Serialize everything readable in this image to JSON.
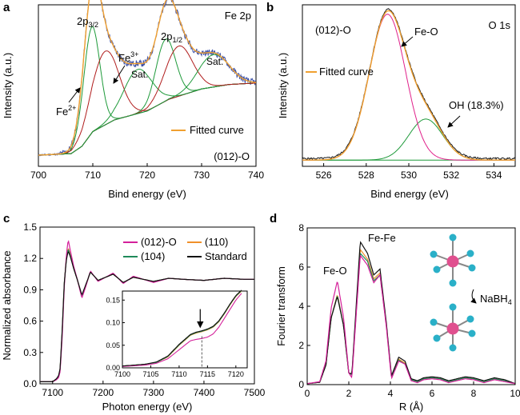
{
  "figure": {
    "panels": [
      "a",
      "b",
      "c",
      "d"
    ]
  },
  "colors": {
    "raw": "#1b1b1b",
    "noise": "#3a4fa8",
    "fitted": "#f0a030",
    "fe2": "#1e9a3a",
    "fe3": "#b01c1c",
    "sat": "#1e9a3a",
    "background": "#1e2a9e",
    "feo_peak": "#e0208a",
    "oh_peak": "#1e9a3a",
    "c_012o": "#d4209a",
    "c_110": "#f0902a",
    "c_104": "#1f8a5a",
    "c_std": "#111111",
    "atom_center": "#e0508f",
    "atom_ligand": "#2ab0c8"
  },
  "chart_data": [
    {
      "panel": "a",
      "type": "line",
      "title": "Fe 2p",
      "xlabel": "Bind energy (eV)",
      "ylabel": "Intensity (a.u.)",
      "xlim": [
        700,
        740
      ],
      "xticks": [
        "700",
        "710",
        "720",
        "730",
        "740"
      ],
      "sample": "(012)-O",
      "legend": [
        "Fitted curve"
      ],
      "annotations": {
        "p32_main": "2p",
        "p32_sub": "3/2",
        "p12_main": "2p",
        "p12_sub": "1/2",
        "fe3_main": "Fe",
        "fe3_sup": "3+",
        "fe2_main": "Fe",
        "fe2_sup": "2+",
        "sat1": "Sat.",
        "sat2": "Sat."
      },
      "peaks": [
        {
          "name": "Fe2+ 2p3/2",
          "center": 709.8,
          "height": 0.72,
          "width": 1.5
        },
        {
          "name": "Fe3+ 2p3/2",
          "center": 712.3,
          "height": 0.5,
          "width": 2.5
        },
        {
          "name": "Sat. 2p3/2",
          "center": 718.3,
          "height": 0.3,
          "width": 2.6
        },
        {
          "name": "Fe2+ 2p1/2",
          "center": 723.4,
          "height": 0.42,
          "width": 1.8
        },
        {
          "name": "Fe3+ 2p1/2",
          "center": 725.8,
          "height": 0.34,
          "width": 2.5
        },
        {
          "name": "Sat. 2p1/2",
          "center": 732.2,
          "height": 0.22,
          "width": 2.8
        }
      ],
      "background_curve": {
        "x": [
          700,
          706,
          708,
          710,
          714,
          720,
          724,
          730,
          735,
          740
        ],
        "y": [
          0,
          0.01,
          0.06,
          0.16,
          0.24,
          0.3,
          0.38,
          0.45,
          0.48,
          0.49
        ]
      }
    },
    {
      "panel": "b",
      "type": "line",
      "title": "O 1s",
      "xlabel": "Bind energy (eV)",
      "ylabel": "Intensity (a.u.)",
      "xlim": [
        525,
        535
      ],
      "xticks": [
        "526",
        "528",
        "530",
        "532",
        "534"
      ],
      "sample": "(012)-O",
      "legend": [
        "Fitted curve"
      ],
      "annotations": {
        "feo": "Fe-O",
        "oh": "OH (18.3%)"
      },
      "peaks": [
        {
          "name": "Fe-O",
          "center": 529.0,
          "height": 0.96,
          "width": 0.85
        },
        {
          "name": "OH",
          "center": 530.8,
          "height": 0.27,
          "width": 0.8
        }
      ],
      "background": 0.02
    },
    {
      "panel": "c",
      "type": "line",
      "xlabel": "Photon energy (eV)",
      "ylabel": "Normalized absorbance",
      "xlim": [
        7075,
        7500
      ],
      "ylim": [
        0,
        1.5
      ],
      "xticks": [
        "7100",
        "7200",
        "7300",
        "7400",
        "7500"
      ],
      "yticks": [
        "0.0",
        "0.3",
        "0.6",
        "0.9",
        "1.2",
        "1.5"
      ],
      "series": [
        {
          "name": "(012)-O",
          "x": [
            7075,
            7100,
            7108,
            7112,
            7115,
            7119,
            7123,
            7127,
            7131,
            7135,
            7142,
            7150,
            7158,
            7165,
            7175,
            7190,
            7205,
            7220,
            7240,
            7260,
            7280,
            7300,
            7330,
            7360,
            7400,
            7440,
            7480,
            7500
          ],
          "y": [
            0.02,
            0.02,
            0.04,
            0.06,
            0.12,
            0.45,
            0.92,
            1.22,
            1.38,
            1.28,
            1.12,
            0.98,
            0.82,
            0.92,
            1.08,
            0.98,
            1.02,
            1.06,
            0.96,
            1.03,
            1.0,
            0.97,
            1.01,
            1.0,
            0.99,
            1.01,
            1.0,
            1.0
          ]
        },
        {
          "name": "(110)",
          "x": [
            7075,
            7100,
            7108,
            7112,
            7115,
            7119,
            7123,
            7127,
            7131,
            7135,
            7142,
            7150,
            7158,
            7165,
            7175,
            7190,
            7205,
            7220,
            7240,
            7260,
            7280,
            7300,
            7330,
            7360,
            7400,
            7440,
            7480,
            7500
          ],
          "y": [
            0.02,
            0.02,
            0.05,
            0.07,
            0.14,
            0.5,
            0.95,
            1.2,
            1.3,
            1.24,
            1.1,
            0.98,
            0.84,
            0.93,
            1.07,
            0.99,
            1.02,
            1.05,
            0.97,
            1.02,
            1.0,
            0.98,
            1.01,
            1.0,
            0.99,
            1.01,
            1.0,
            1.0
          ]
        },
        {
          "name": "(104)",
          "x": [
            7075,
            7100,
            7108,
            7112,
            7115,
            7119,
            7123,
            7127,
            7131,
            7135,
            7142,
            7150,
            7158,
            7165,
            7175,
            7190,
            7205,
            7220,
            7240,
            7260,
            7280,
            7300,
            7330,
            7360,
            7400,
            7440,
            7480,
            7500
          ],
          "y": [
            0.02,
            0.02,
            0.05,
            0.07,
            0.14,
            0.5,
            0.95,
            1.19,
            1.29,
            1.23,
            1.1,
            0.98,
            0.84,
            0.93,
            1.07,
            0.99,
            1.02,
            1.05,
            0.97,
            1.02,
            1.0,
            0.98,
            1.01,
            1.0,
            0.99,
            1.01,
            1.0,
            1.0
          ]
        },
        {
          "name": "Standard",
          "x": [
            7075,
            7100,
            7108,
            7112,
            7115,
            7119,
            7123,
            7127,
            7131,
            7135,
            7142,
            7150,
            7158,
            7165,
            7175,
            7190,
            7205,
            7220,
            7240,
            7260,
            7280,
            7300,
            7330,
            7360,
            7400,
            7440,
            7480,
            7500
          ],
          "y": [
            0.02,
            0.02,
            0.05,
            0.08,
            0.15,
            0.52,
            0.96,
            1.18,
            1.27,
            1.22,
            1.1,
            0.98,
            0.85,
            0.94,
            1.07,
            0.99,
            1.02,
            1.05,
            0.97,
            1.02,
            1.0,
            0.98,
            1.01,
            1.0,
            0.99,
            1.01,
            1.0,
            1.0
          ]
        }
      ],
      "legend_position": "top-right",
      "inset": {
        "xlim": [
          7100,
          7122
        ],
        "ylim": [
          0,
          0.17
        ],
        "xticks": [
          "7100",
          "7105",
          "7110",
          "7115",
          "7120"
        ],
        "yticks": [
          "0.00",
          "0.05",
          "0.10",
          "0.15"
        ],
        "marker_x": 7114,
        "series": [
          {
            "name": "(012)-O",
            "x": [
              7100,
              7104,
              7106,
              7108,
              7110,
              7112,
              7113,
              7114,
              7115,
              7116,
              7117,
              7118,
              7119,
              7120,
              7121
            ],
            "y": [
              0.003,
              0.006,
              0.01,
              0.02,
              0.04,
              0.06,
              0.063,
              0.065,
              0.068,
              0.075,
              0.09,
              0.11,
              0.13,
              0.15,
              0.165
            ]
          },
          {
            "name": "(110)",
            "x": [
              7100,
              7104,
              7106,
              7108,
              7110,
              7112,
              7113,
              7114,
              7115,
              7116,
              7117,
              7118,
              7119,
              7120,
              7121
            ],
            "y": [
              0.004,
              0.008,
              0.012,
              0.024,
              0.05,
              0.072,
              0.077,
              0.08,
              0.084,
              0.09,
              0.102,
              0.12,
              0.14,
              0.158,
              0.17
            ]
          },
          {
            "name": "(104)",
            "x": [
              7100,
              7104,
              7106,
              7108,
              7110,
              7112,
              7113,
              7114,
              7115,
              7116,
              7117,
              7118,
              7119,
              7120,
              7121
            ],
            "y": [
              0.004,
              0.008,
              0.012,
              0.025,
              0.051,
              0.073,
              0.078,
              0.081,
              0.085,
              0.091,
              0.103,
              0.121,
              0.141,
              0.159,
              0.171
            ]
          },
          {
            "name": "Standard",
            "x": [
              7100,
              7104,
              7106,
              7108,
              7110,
              7112,
              7113,
              7114,
              7115,
              7116,
              7117,
              7118,
              7119,
              7120,
              7121
            ],
            "y": [
              0.004,
              0.008,
              0.013,
              0.026,
              0.052,
              0.074,
              0.079,
              0.082,
              0.086,
              0.092,
              0.104,
              0.122,
              0.142,
              0.16,
              0.172
            ]
          }
        ]
      }
    },
    {
      "panel": "d",
      "type": "line",
      "xlabel": "R (Å)",
      "ylabel": "Fourier transform",
      "xlim": [
        0,
        10
      ],
      "ylim": [
        0,
        8
      ],
      "xticks": [
        "0",
        "2",
        "4",
        "6",
        "8",
        "10"
      ],
      "yticks": [
        "0",
        "2",
        "4",
        "6",
        "8"
      ],
      "annotations": {
        "feo": "Fe-O",
        "fefe": "Fe-Fe",
        "reagent_main": "NaBH",
        "reagent_sub": "4"
      },
      "series": [
        {
          "name": "(012)-O",
          "x": [
            0,
            0.6,
            0.9,
            1.15,
            1.45,
            1.75,
            2.0,
            2.15,
            2.55,
            2.9,
            3.2,
            3.5,
            3.8,
            4.05,
            4.4,
            4.7,
            5.0,
            5.3,
            5.6,
            6.0,
            6.4,
            6.8,
            7.2,
            7.6,
            8.0,
            8.5,
            9.0,
            9.5,
            10.0
          ],
          "y": [
            0.05,
            0.15,
            1.2,
            3.9,
            5.3,
            3.4,
            0.6,
            0.35,
            6.6,
            6.1,
            5.2,
            5.6,
            3.0,
            0.3,
            1.2,
            1.05,
            0.2,
            0.1,
            0.25,
            0.3,
            0.25,
            0.1,
            0.2,
            0.3,
            0.25,
            0.1,
            0.25,
            0.15,
            0.05
          ]
        },
        {
          "name": "(110)",
          "x": [
            0,
            0.6,
            0.9,
            1.15,
            1.45,
            1.75,
            2.0,
            2.15,
            2.55,
            2.9,
            3.2,
            3.5,
            3.8,
            4.05,
            4.4,
            4.7,
            5.0,
            5.3,
            5.6,
            6.0,
            6.4,
            6.8,
            7.2,
            7.6,
            8.0,
            8.5,
            9.0,
            9.5,
            10.0
          ],
          "y": [
            0.05,
            0.12,
            1.0,
            3.4,
            4.6,
            3.0,
            0.6,
            0.5,
            6.9,
            6.4,
            5.4,
            5.7,
            3.1,
            0.4,
            1.3,
            1.1,
            0.25,
            0.15,
            0.3,
            0.35,
            0.3,
            0.15,
            0.25,
            0.35,
            0.3,
            0.15,
            0.3,
            0.2,
            0.05
          ]
        },
        {
          "name": "(104)",
          "x": [
            0,
            0.6,
            0.9,
            1.15,
            1.45,
            1.75,
            2.0,
            2.15,
            2.55,
            2.9,
            3.2,
            3.5,
            3.8,
            4.05,
            4.4,
            4.7,
            5.0,
            5.3,
            5.6,
            6.0,
            6.4,
            6.8,
            7.2,
            7.6,
            8.0,
            8.5,
            9.0,
            9.5,
            10.0
          ],
          "y": [
            0.05,
            0.12,
            1.0,
            3.4,
            4.55,
            3.0,
            0.6,
            0.5,
            6.7,
            6.3,
            5.3,
            5.6,
            3.1,
            0.4,
            1.25,
            1.05,
            0.25,
            0.15,
            0.3,
            0.35,
            0.3,
            0.15,
            0.25,
            0.35,
            0.3,
            0.15,
            0.3,
            0.2,
            0.05
          ]
        },
        {
          "name": "Standard",
          "x": [
            0,
            0.6,
            0.9,
            1.15,
            1.45,
            1.75,
            2.0,
            2.15,
            2.55,
            2.9,
            3.2,
            3.5,
            3.8,
            4.05,
            4.4,
            4.7,
            5.0,
            5.3,
            5.6,
            6.0,
            6.4,
            6.8,
            7.2,
            7.6,
            8.0,
            8.5,
            9.0,
            9.5,
            10.0
          ],
          "y": [
            0.05,
            0.12,
            1.0,
            3.4,
            4.5,
            3.0,
            0.6,
            0.55,
            7.3,
            6.7,
            5.6,
            5.9,
            3.2,
            0.45,
            1.4,
            1.2,
            0.3,
            0.2,
            0.35,
            0.4,
            0.35,
            0.2,
            0.3,
            0.4,
            0.35,
            0.2,
            0.35,
            0.25,
            0.05
          ]
        }
      ]
    }
  ]
}
